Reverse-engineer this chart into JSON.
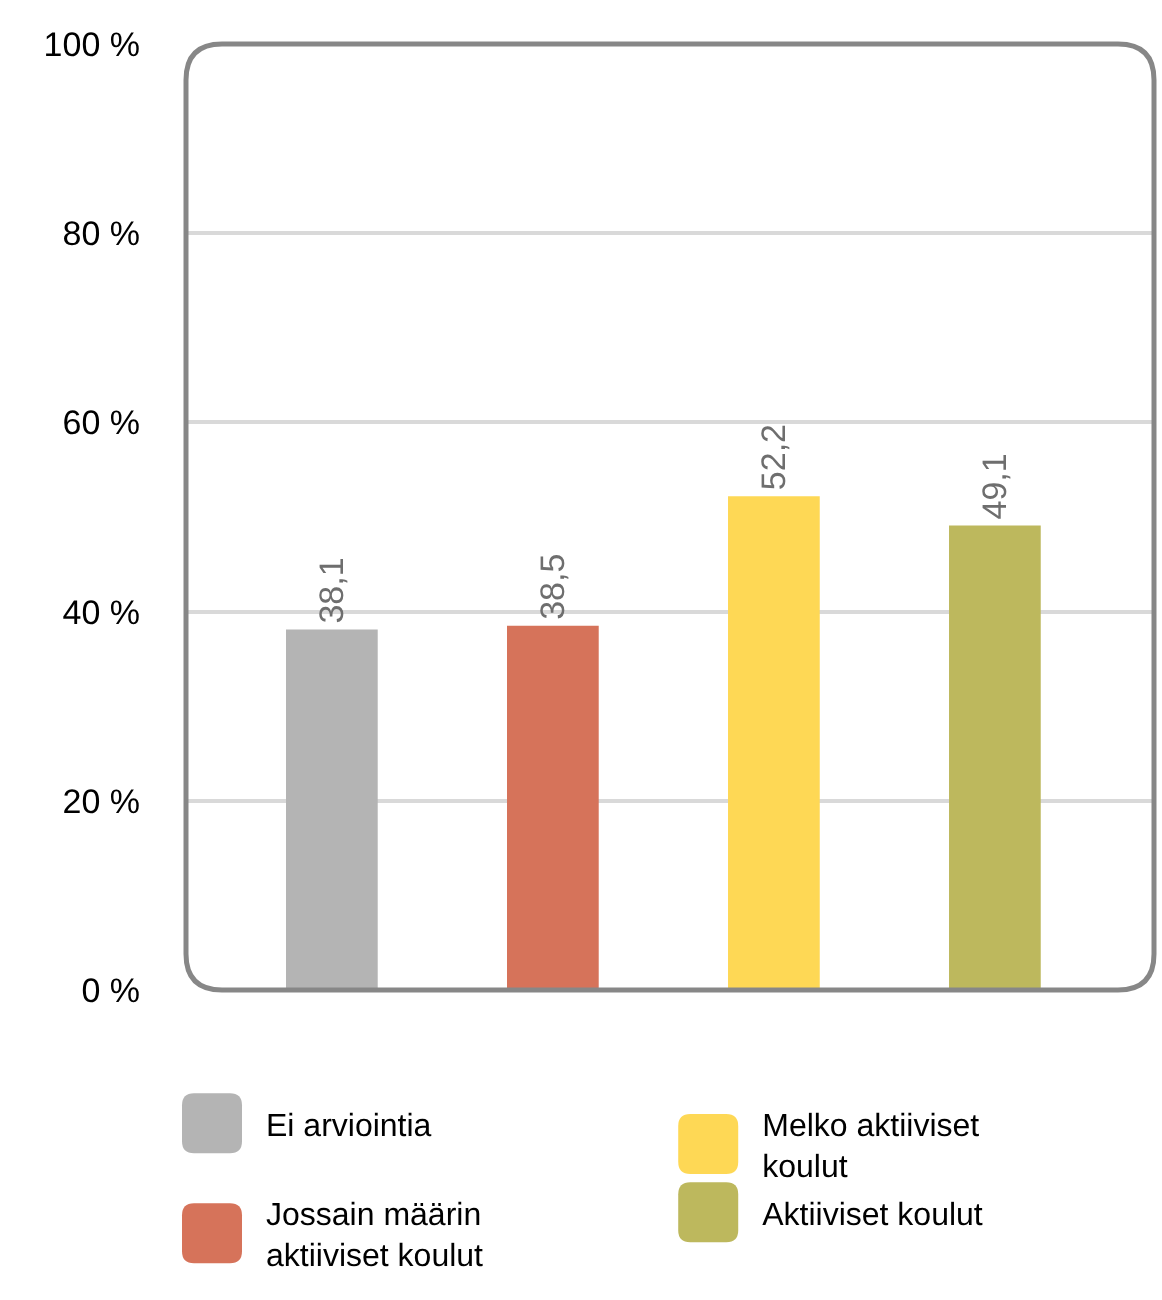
{
  "chart_data": {
    "type": "bar",
    "categories": [
      null,
      null,
      null,
      null
    ],
    "series": [
      {
        "name": "Ei arviointia",
        "color": "#b4b4b4",
        "values": [
          38.1,
          null,
          null,
          null
        ],
        "value_labels": [
          "38,1",
          null,
          null,
          null
        ]
      },
      {
        "name": "Jossain määrin aktiiviset koulut",
        "color": "#d6735a",
        "values": [
          null,
          38.5,
          null,
          null
        ],
        "value_labels": [
          null,
          "38,5",
          null,
          null
        ]
      },
      {
        "name": "Melko aktiiviset koulut",
        "color": "#fed855",
        "values": [
          null,
          null,
          52.2,
          null
        ],
        "value_labels": [
          null,
          null,
          "52,2",
          null
        ]
      },
      {
        "name": "Aktiiviset koulut",
        "color": "#bdb85d",
        "values": [
          null,
          null,
          null,
          49.1
        ],
        "value_labels": [
          null,
          null,
          null,
          "49,1"
        ]
      }
    ],
    "ylim": [
      0,
      100
    ],
    "yticks": [
      {
        "value": 0,
        "label": "0 %"
      },
      {
        "value": 20,
        "label": "20 %"
      },
      {
        "value": 40,
        "label": "40 %"
      },
      {
        "value": 60,
        "label": "60 %"
      },
      {
        "value": 80,
        "label": "80 %"
      },
      {
        "value": 100,
        "label": "100 %"
      }
    ],
    "grid": "y",
    "legend": "bottom"
  }
}
